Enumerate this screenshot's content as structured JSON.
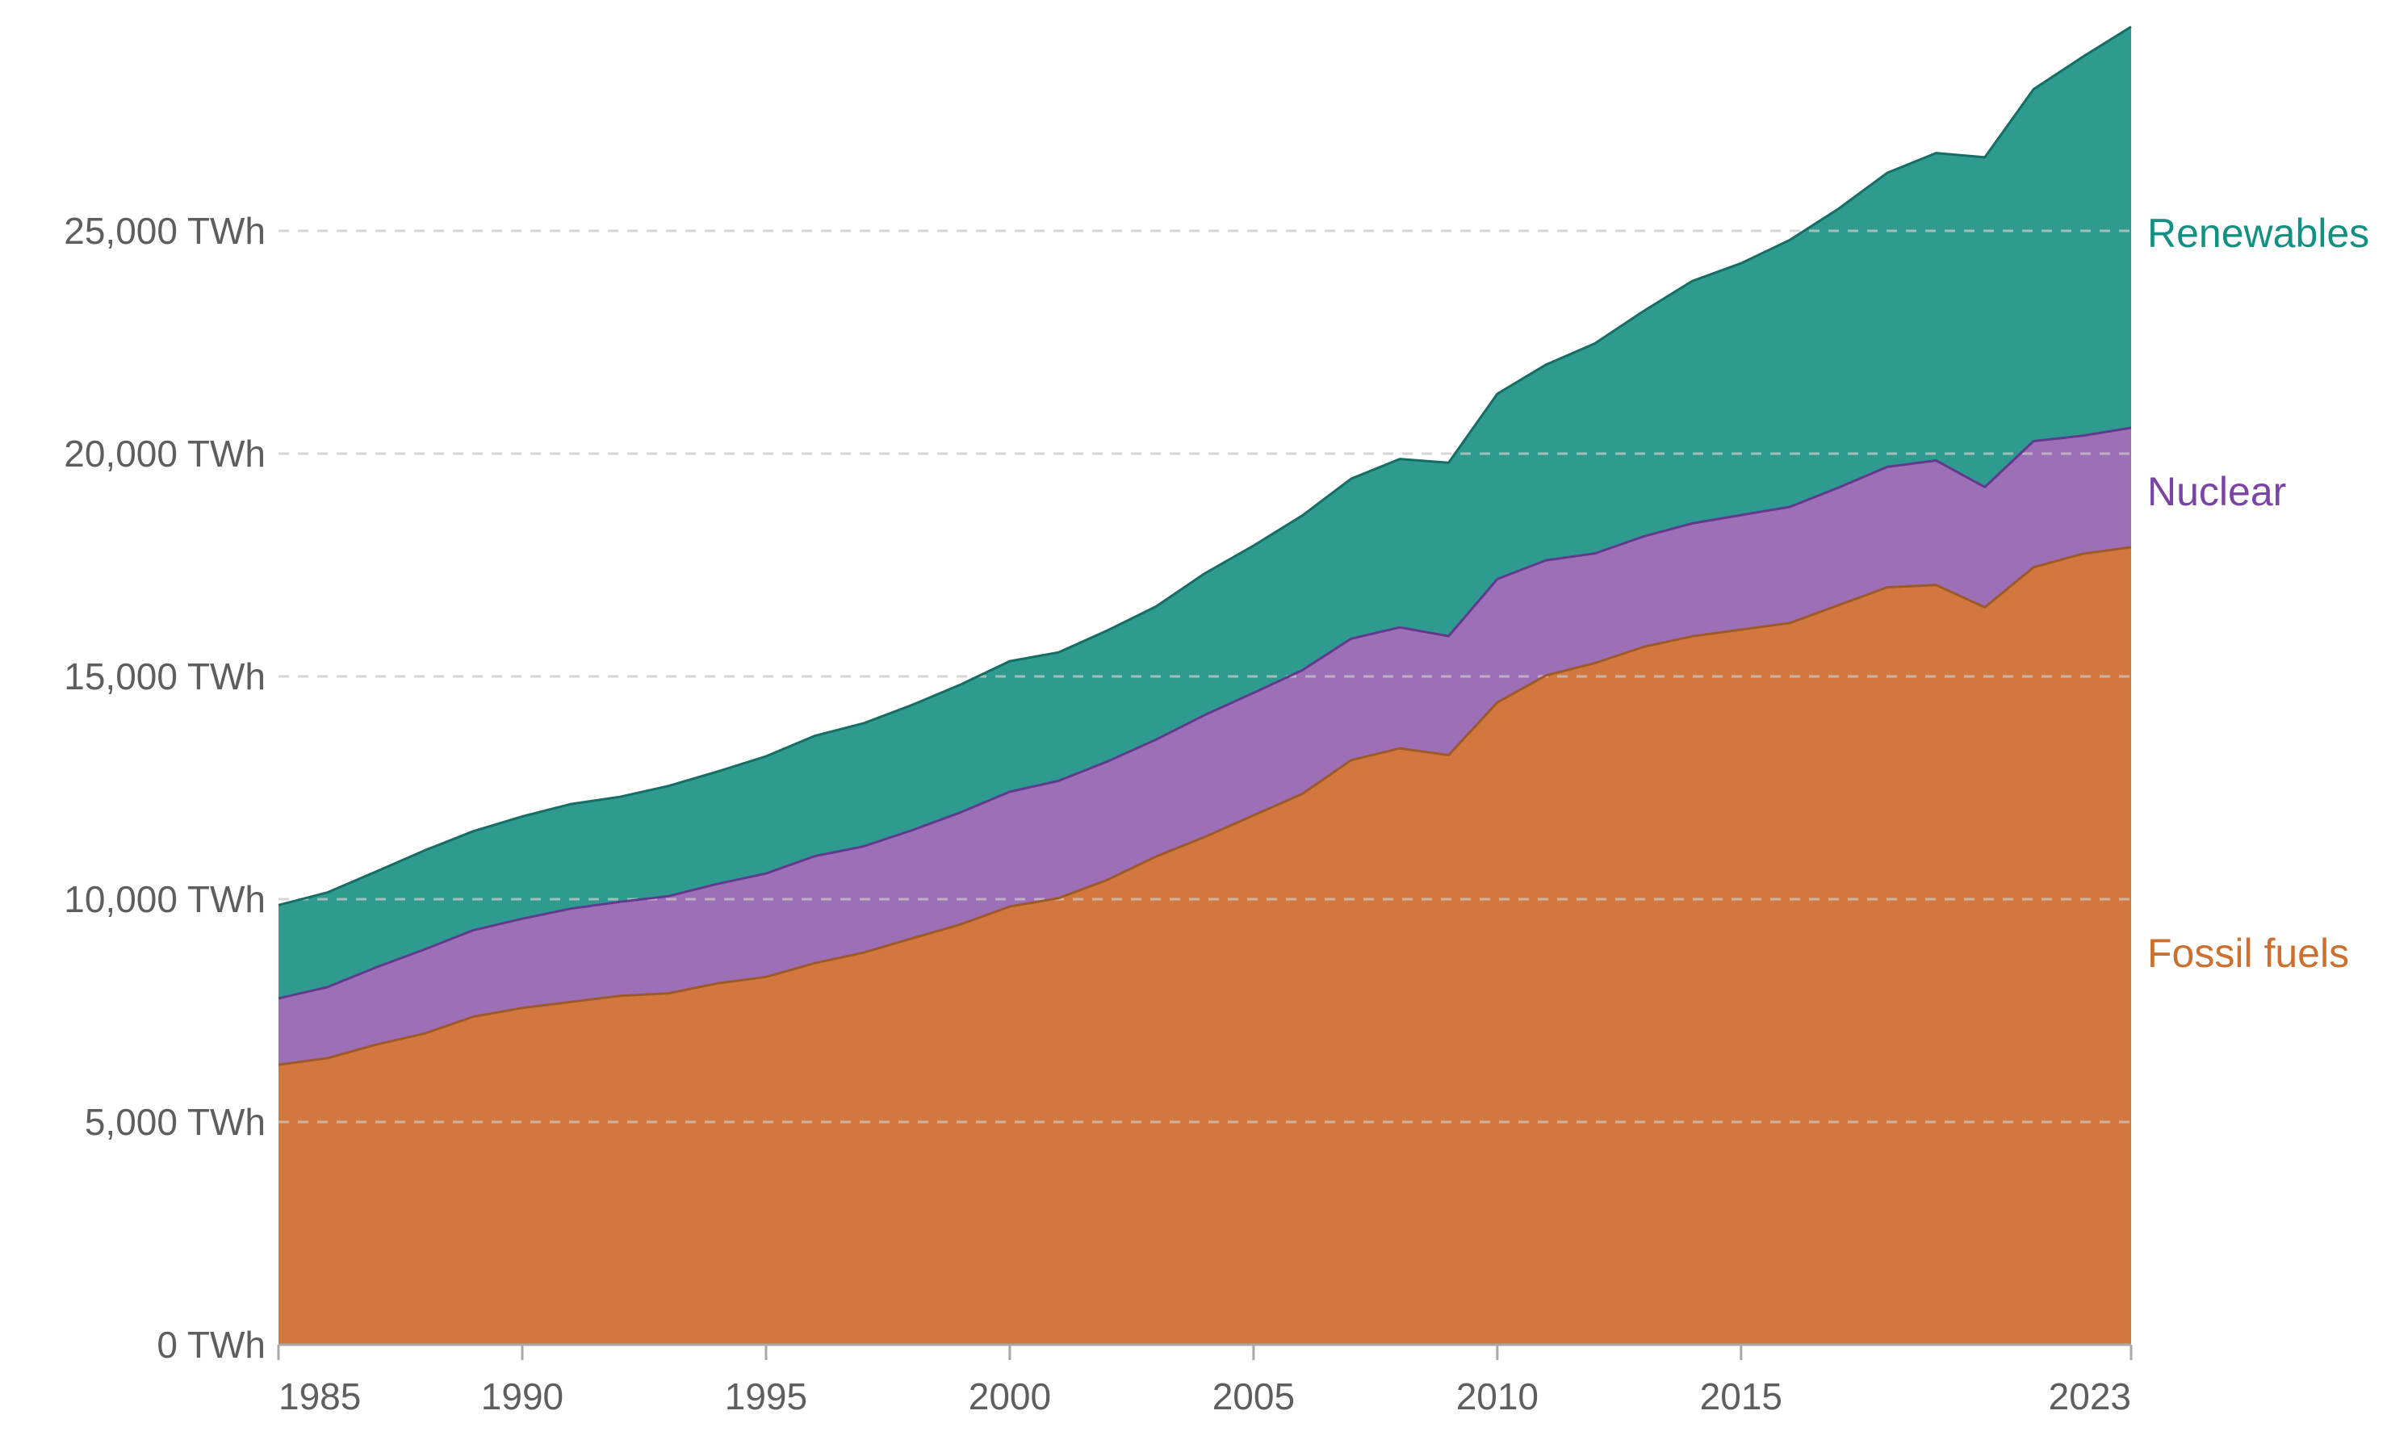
{
  "chart_data": {
    "type": "area",
    "stacked": true,
    "unit": "TWh",
    "x_label": "",
    "y_label": "",
    "grid": "dashed horizontal gridlines",
    "legend_position": "right edge, colored text labels",
    "xlim": [
      1985,
      2023
    ],
    "ylim": [
      0,
      30180
    ],
    "x": [
      1985,
      1986,
      1987,
      1988,
      1989,
      1990,
      1991,
      1992,
      1993,
      1994,
      1995,
      1996,
      1997,
      1998,
      1999,
      2000,
      2001,
      2002,
      2003,
      2004,
      2005,
      2006,
      2007,
      2008,
      2009,
      2010,
      2011,
      2012,
      2013,
      2014,
      2015,
      2016,
      2017,
      2018,
      2019,
      2020,
      2021,
      2022,
      2023
    ],
    "series": [
      {
        "name": "Fossil fuels",
        "fill_color": "#D2783E",
        "line_color": "#9E5A26",
        "label_color": "#CC7030",
        "values": [
          6285,
          6432,
          6735,
          6987,
          7364,
          7560,
          7695,
          7830,
          7888,
          8110,
          8256,
          8565,
          8800,
          9122,
          9438,
          9836,
          10023,
          10433,
          10956,
          11396,
          11882,
          12365,
          13120,
          13385,
          13233,
          14417,
          15023,
          15299,
          15663,
          15900,
          16050,
          16200,
          16600,
          17000,
          17050,
          16550,
          17450,
          17750,
          17900
        ]
      },
      {
        "name": "Nuclear",
        "fill_color": "#9C6FB6",
        "line_color": "#62398E",
        "label_color": "#7A44A4",
        "values": [
          1489,
          1594,
          1734,
          1888,
          1940,
          2001,
          2093,
          2110,
          2180,
          2232,
          2320,
          2400,
          2385,
          2427,
          2513,
          2576,
          2632,
          2656,
          2625,
          2738,
          2748,
          2775,
          2726,
          2716,
          2671,
          2767,
          2584,
          2460,
          2478,
          2535,
          2571,
          2605,
          2637,
          2702,
          2796,
          2700,
          2830,
          2650,
          2680
        ]
      },
      {
        "name": "Renewables",
        "fill_color": "#2F9B90",
        "line_color": "#146E64",
        "label_color": "#149083",
        "values": [
          2093,
          2125,
          2149,
          2221,
          2223,
          2296,
          2348,
          2357,
          2473,
          2523,
          2631,
          2702,
          2763,
          2811,
          2869,
          2930,
          2884,
          2941,
          2988,
          3177,
          3304,
          3470,
          3589,
          3779,
          3892,
          4158,
          4392,
          4714,
          5058,
          5440,
          5650,
          5990,
          6260,
          6600,
          6900,
          7400,
          7900,
          8500,
          9000
        ]
      }
    ],
    "y_ticks": [
      {
        "value": 0,
        "label": "0 TWh"
      },
      {
        "value": 5000,
        "label": "5,000 TWh"
      },
      {
        "value": 10000,
        "label": "10,000 TWh"
      },
      {
        "value": 15000,
        "label": "15,000 TWh"
      },
      {
        "value": 20000,
        "label": "20,000 TWh"
      },
      {
        "value": 25000,
        "label": "25,000 TWh"
      }
    ],
    "x_ticks": [
      {
        "value": 1985,
        "label": "1985"
      },
      {
        "value": 1990,
        "label": "1990"
      },
      {
        "value": 1995,
        "label": "1995"
      },
      {
        "value": 2000,
        "label": "2000"
      },
      {
        "value": 2005,
        "label": "2005"
      },
      {
        "value": 2010,
        "label": "2010"
      },
      {
        "value": 2015,
        "label": "2015"
      },
      {
        "value": 2023,
        "label": "2023"
      }
    ]
  },
  "legend": {
    "renewables": "Renewables",
    "nuclear": "Nuclear",
    "fossil": "Fossil fuels"
  },
  "style_colors": {
    "axis_text": "#5E5E5E",
    "axis_line": "#A8A8A8",
    "gridline": "#C9C9C9",
    "background": "#FFFFFF"
  }
}
